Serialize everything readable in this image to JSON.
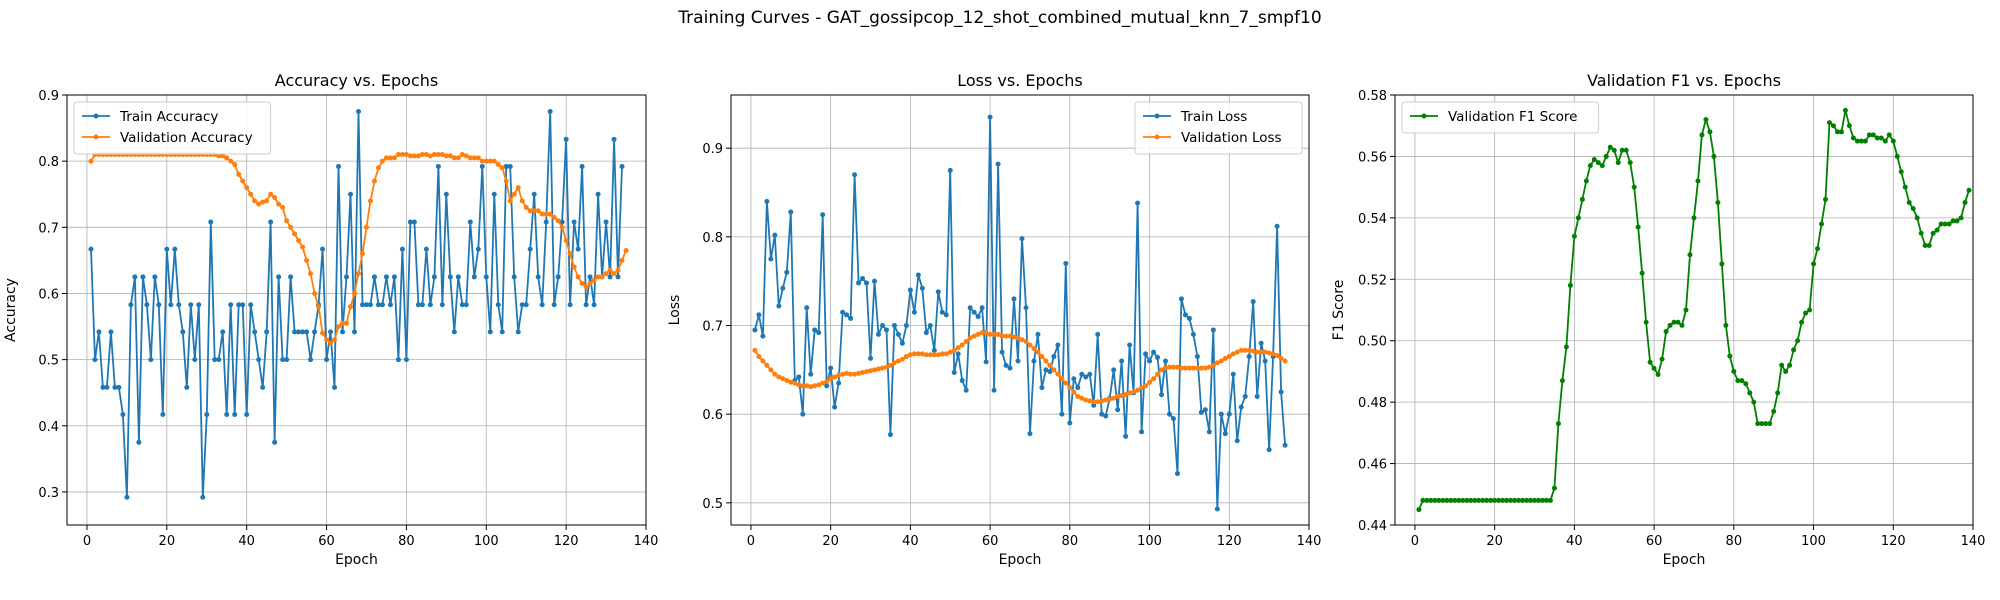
{
  "figure": {
    "suptitle": "Training Curves - GAT_gossipcop_12_shot_combined_mutual_knn_7_smpf10"
  },
  "chart_data": [
    {
      "type": "line",
      "title": "Accuracy vs. Epochs",
      "xlabel": "Epoch",
      "ylabel": "Accuracy",
      "xlim": [
        -5,
        140
      ],
      "ylim": [
        0.25,
        0.9
      ],
      "xticks": [
        0,
        20,
        40,
        60,
        80,
        100,
        120,
        140
      ],
      "yticks": [
        0.3,
        0.4,
        0.5,
        0.6,
        0.7,
        0.8,
        0.9
      ],
      "ytick_labels": [
        "0.3",
        "0.4",
        "0.5",
        "0.6",
        "0.7",
        "0.8",
        "0.9"
      ],
      "grid": true,
      "legend": "upper-left",
      "series": [
        {
          "name": "Train Accuracy",
          "color": "#1f77b4",
          "values": [
            0.667,
            0.5,
            0.542,
            0.458,
            0.458,
            0.542,
            0.458,
            0.458,
            0.417,
            0.292,
            0.583,
            0.625,
            0.375,
            0.625,
            0.583,
            0.5,
            0.625,
            0.583,
            0.417,
            0.667,
            0.583,
            0.667,
            0.583,
            0.542,
            0.458,
            0.583,
            0.5,
            0.583,
            0.292,
            0.417,
            0.708,
            0.5,
            0.5,
            0.542,
            0.417,
            0.583,
            0.417,
            0.583,
            0.583,
            0.417,
            0.583,
            0.542,
            0.5,
            0.458,
            0.542,
            0.708,
            0.375,
            0.625,
            0.5,
            0.5,
            0.625,
            0.542,
            0.542,
            0.542,
            0.542,
            0.5,
            0.542,
            0.583,
            0.667,
            0.5,
            0.542,
            0.458,
            0.792,
            0.542,
            0.625,
            0.75,
            0.542,
            0.875,
            0.583,
            0.583,
            0.583,
            0.625,
            0.583,
            0.583,
            0.625,
            0.583,
            0.625,
            0.5,
            0.667,
            0.5,
            0.708,
            0.708,
            0.583,
            0.583,
            0.667,
            0.583,
            0.625,
            0.792,
            0.583,
            0.75,
            0.625,
            0.542,
            0.625,
            0.583,
            0.583,
            0.708,
            0.625,
            0.667,
            0.792,
            0.625,
            0.542,
            0.75,
            0.583,
            0.542,
            0.792,
            0.792,
            0.625,
            0.542,
            0.583,
            0.583,
            0.667,
            0.75,
            0.625,
            0.583,
            0.708,
            0.875,
            0.583,
            0.625,
            0.708,
            0.833,
            0.583,
            0.708,
            0.667,
            0.792,
            0.583,
            0.625,
            0.583,
            0.75,
            0.625,
            0.708,
            0.625,
            0.833,
            0.625,
            0.792
          ]
        },
        {
          "name": "Validation Accuracy",
          "color": "#ff7f0e",
          "values": [
            0.8,
            0.81,
            0.81,
            0.81,
            0.81,
            0.81,
            0.81,
            0.81,
            0.81,
            0.81,
            0.81,
            0.81,
            0.81,
            0.81,
            0.81,
            0.81,
            0.81,
            0.81,
            0.81,
            0.81,
            0.81,
            0.81,
            0.81,
            0.81,
            0.81,
            0.81,
            0.81,
            0.81,
            0.81,
            0.81,
            0.81,
            0.81,
            0.808,
            0.808,
            0.805,
            0.8,
            0.795,
            0.78,
            0.77,
            0.76,
            0.75,
            0.74,
            0.735,
            0.738,
            0.74,
            0.75,
            0.745,
            0.735,
            0.73,
            0.71,
            0.7,
            0.69,
            0.68,
            0.67,
            0.65,
            0.63,
            0.6,
            0.58,
            0.54,
            0.53,
            0.525,
            0.53,
            0.55,
            0.555,
            0.555,
            0.58,
            0.6,
            0.63,
            0.66,
            0.7,
            0.74,
            0.77,
            0.79,
            0.8,
            0.805,
            0.805,
            0.805,
            0.81,
            0.81,
            0.81,
            0.808,
            0.808,
            0.808,
            0.81,
            0.81,
            0.808,
            0.81,
            0.81,
            0.81,
            0.808,
            0.808,
            0.805,
            0.805,
            0.81,
            0.808,
            0.805,
            0.805,
            0.805,
            0.8,
            0.8,
            0.8,
            0.8,
            0.795,
            0.79,
            0.77,
            0.74,
            0.75,
            0.76,
            0.74,
            0.73,
            0.725,
            0.725,
            0.725,
            0.72,
            0.72,
            0.72,
            0.715,
            0.71,
            0.7,
            0.68,
            0.66,
            0.64,
            0.625,
            0.615,
            0.61,
            0.615,
            0.62,
            0.625,
            0.625,
            0.63,
            0.635,
            0.63,
            0.635,
            0.65,
            0.665
          ]
        }
      ]
    },
    {
      "type": "line",
      "title": "Loss vs. Epochs",
      "xlabel": "Epoch",
      "ylabel": "Loss",
      "xlim": [
        -5,
        140
      ],
      "ylim": [
        0.475,
        0.96
      ],
      "xticks": [
        0,
        20,
        40,
        60,
        80,
        100,
        120,
        140
      ],
      "yticks": [
        0.5,
        0.6,
        0.7,
        0.8,
        0.9
      ],
      "ytick_labels": [
        "0.5",
        "0.6",
        "0.7",
        "0.8",
        "0.9"
      ],
      "grid": true,
      "legend": "upper-right",
      "series": [
        {
          "name": "Train Loss",
          "color": "#1f77b4",
          "values": [
            0.695,
            0.712,
            0.688,
            0.84,
            0.775,
            0.802,
            0.722,
            0.742,
            0.76,
            0.828,
            0.638,
            0.642,
            0.6,
            0.72,
            0.645,
            0.695,
            0.692,
            0.825,
            0.632,
            0.652,
            0.608,
            0.635,
            0.715,
            0.712,
            0.708,
            0.87,
            0.748,
            0.753,
            0.748,
            0.663,
            0.75,
            0.69,
            0.7,
            0.695,
            0.577,
            0.7,
            0.69,
            0.68,
            0.7,
            0.74,
            0.715,
            0.757,
            0.742,
            0.692,
            0.7,
            0.672,
            0.738,
            0.715,
            0.712,
            0.875,
            0.647,
            0.668,
            0.638,
            0.627,
            0.72,
            0.715,
            0.71,
            0.72,
            0.659,
            0.935,
            0.627,
            0.882,
            0.67,
            0.655,
            0.652,
            0.73,
            0.66,
            0.798,
            0.72,
            0.578,
            0.66,
            0.69,
            0.63,
            0.65,
            0.648,
            0.665,
            0.678,
            0.6,
            0.77,
            0.59,
            0.64,
            0.63,
            0.645,
            0.642,
            0.645,
            0.61,
            0.69,
            0.6,
            0.598,
            0.618,
            0.65,
            0.605,
            0.66,
            0.575,
            0.678,
            0.624,
            0.838,
            0.58,
            0.668,
            0.66,
            0.67,
            0.664,
            0.622,
            0.66,
            0.6,
            0.595,
            0.533,
            0.73,
            0.712,
            0.708,
            0.69,
            0.665,
            0.602,
            0.605,
            0.58,
            0.695,
            0.493,
            0.6,
            0.578,
            0.6,
            0.645,
            0.57,
            0.608,
            0.62,
            0.665,
            0.727,
            0.62,
            0.68,
            0.66,
            0.56,
            0.665,
            0.812,
            0.625,
            0.565
          ]
        },
        {
          "name": "Validation Loss",
          "color": "#ff7f0e",
          "values": [
            0.672,
            0.665,
            0.66,
            0.655,
            0.65,
            0.645,
            0.642,
            0.64,
            0.638,
            0.636,
            0.635,
            0.633,
            0.632,
            0.632,
            0.631,
            0.632,
            0.633,
            0.635,
            0.637,
            0.64,
            0.642,
            0.644,
            0.645,
            0.646,
            0.645,
            0.645,
            0.646,
            0.647,
            0.648,
            0.649,
            0.65,
            0.651,
            0.652,
            0.653,
            0.655,
            0.658,
            0.66,
            0.662,
            0.665,
            0.667,
            0.668,
            0.668,
            0.668,
            0.667,
            0.667,
            0.667,
            0.667,
            0.668,
            0.668,
            0.67,
            0.672,
            0.675,
            0.678,
            0.682,
            0.686,
            0.688,
            0.69,
            0.692,
            0.692,
            0.69,
            0.69,
            0.69,
            0.688,
            0.688,
            0.688,
            0.687,
            0.686,
            0.684,
            0.682,
            0.678,
            0.674,
            0.67,
            0.665,
            0.66,
            0.655,
            0.65,
            0.645,
            0.64,
            0.635,
            0.63,
            0.625,
            0.62,
            0.618,
            0.616,
            0.615,
            0.614,
            0.614,
            0.615,
            0.616,
            0.617,
            0.618,
            0.62,
            0.621,
            0.622,
            0.624,
            0.625,
            0.627,
            0.63,
            0.632,
            0.636,
            0.64,
            0.645,
            0.65,
            0.652,
            0.653,
            0.653,
            0.653,
            0.652,
            0.652,
            0.652,
            0.652,
            0.652,
            0.652,
            0.652,
            0.653,
            0.655,
            0.658,
            0.66,
            0.663,
            0.665,
            0.668,
            0.67,
            0.672,
            0.672,
            0.672,
            0.671,
            0.67,
            0.67,
            0.67,
            0.669,
            0.668,
            0.666,
            0.663,
            0.66
          ]
        }
      ]
    },
    {
      "type": "line",
      "title": "Validation F1 vs. Epochs",
      "xlabel": "Epoch",
      "ylabel": "F1 Score",
      "xlim": [
        -5,
        140
      ],
      "ylim": [
        0.44,
        0.58
      ],
      "xticks": [
        0,
        20,
        40,
        60,
        80,
        100,
        120,
        140
      ],
      "yticks": [
        0.44,
        0.46,
        0.48,
        0.5,
        0.52,
        0.54,
        0.56,
        0.58
      ],
      "ytick_labels": [
        "0.44",
        "0.46",
        "0.48",
        "0.50",
        "0.52",
        "0.54",
        "0.56",
        "0.58"
      ],
      "grid": true,
      "legend": "upper-left",
      "series": [
        {
          "name": "Validation F1 Score",
          "color": "#008000",
          "values": [
            0.445,
            0.448,
            0.448,
            0.448,
            0.448,
            0.448,
            0.448,
            0.448,
            0.448,
            0.448,
            0.448,
            0.448,
            0.448,
            0.448,
            0.448,
            0.448,
            0.448,
            0.448,
            0.448,
            0.448,
            0.448,
            0.448,
            0.448,
            0.448,
            0.448,
            0.448,
            0.448,
            0.448,
            0.448,
            0.448,
            0.448,
            0.448,
            0.448,
            0.448,
            0.452,
            0.473,
            0.487,
            0.498,
            0.518,
            0.534,
            0.54,
            0.546,
            0.552,
            0.557,
            0.559,
            0.558,
            0.557,
            0.56,
            0.563,
            0.562,
            0.558,
            0.562,
            0.562,
            0.558,
            0.55,
            0.537,
            0.522,
            0.506,
            0.493,
            0.491,
            0.489,
            0.494,
            0.503,
            0.505,
            0.506,
            0.506,
            0.505,
            0.51,
            0.528,
            0.54,
            0.552,
            0.567,
            0.572,
            0.568,
            0.56,
            0.545,
            0.525,
            0.505,
            0.495,
            0.49,
            0.487,
            0.487,
            0.486,
            0.483,
            0.48,
            0.473,
            0.473,
            0.473,
            0.473,
            0.477,
            0.483,
            0.492,
            0.49,
            0.492,
            0.497,
            0.5,
            0.506,
            0.509,
            0.51,
            0.525,
            0.53,
            0.538,
            0.546,
            0.571,
            0.57,
            0.568,
            0.568,
            0.575,
            0.57,
            0.566,
            0.565,
            0.565,
            0.565,
            0.567,
            0.567,
            0.566,
            0.566,
            0.565,
            0.567,
            0.565,
            0.56,
            0.555,
            0.55,
            0.545,
            0.543,
            0.54,
            0.535,
            0.531,
            0.531,
            0.535,
            0.536,
            0.538,
            0.538,
            0.538,
            0.539,
            0.539,
            0.54,
            0.545,
            0.549
          ]
        }
      ]
    }
  ]
}
